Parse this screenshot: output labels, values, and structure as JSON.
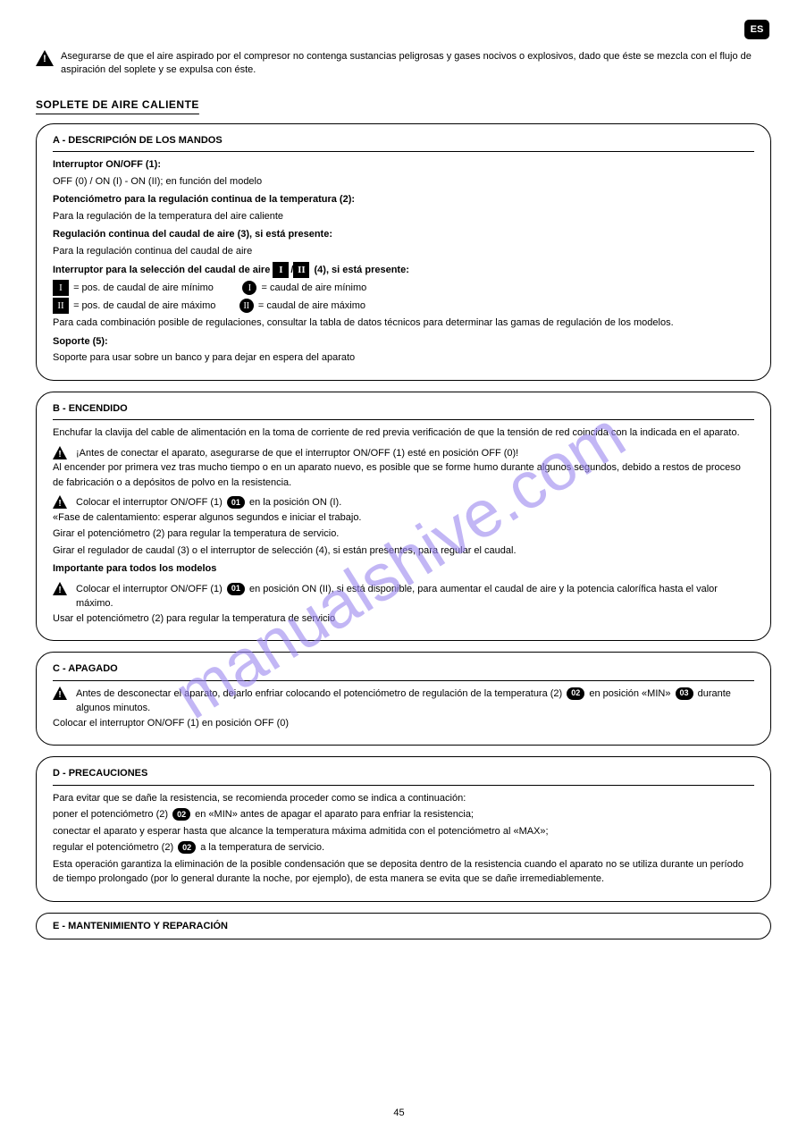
{
  "lang_badge": "ES",
  "top_warning": "Asegurarse de que el aire aspirado por el compresor no contenga sustancias peligrosas y gases nocivos o explosivos, dado que éste se mezcla con el flujo de aspiración del soplete y se expulsa con éste.",
  "section_heading": "SOPLETE DE AIRE CALIENTE",
  "box1": {
    "title": "A -  DESCRIPCIÓN DE LOS MANDOS",
    "l1": "Interruptor ON/OFF (1):",
    "l2": "OFF (0) / ON (I) - ON (II); en función del modelo",
    "l3": "Potenciómetro para la regulación continua de la temperatura (2):",
    "l4": "Para la regulación de la temperatura del aire caliente",
    "l5": "Regulación continua del caudal de aire (3), si está presente:",
    "l6": "Para la regulación continua del caudal de aire",
    "l7_pre": "Interruptor para la selección del caudal de aire",
    "l7_icon1": "I",
    "l7_sep": "/",
    "l7_icon2": "II",
    "l7_post": "(4), si está presente:",
    "l8_sq1": "I",
    "l8_t1": "= pos. de caudal de aire mínimo",
    "l8_c1": "I",
    "l8_t2": "= caudal de aire mínimo",
    "l9_sq1": "II",
    "l9_t1": "= pos. de caudal de aire máximo",
    "l9_c1": "II",
    "l9_t2": "= caudal de aire máximo",
    "l10": "Para cada combinación posible de regulaciones, consultar la tabla de datos técnicos para determinar las gamas de regulación de los modelos.",
    "l11": "Soporte (5):",
    "l12": "Soporte para usar sobre un banco y para dejar en espera del aparato"
  },
  "box2": {
    "title": "B -  ENCENDIDO",
    "b1": "Enchufar la clavija del cable de alimentación en la toma de corriente de red previa verificación de que la tensión de red coincida con la indicada en el aparato.",
    "w1": "¡Antes de conectar el aparato, asegurarse de que el interruptor ON/OFF (1) esté en posición OFF (0)!",
    "b2": "Al encender por primera vez tras mucho tiempo o en un aparato nuevo, es posible que se forme humo durante algunos segundos, debido a restos de proceso de fabricación o a depósitos de polvo en la resistencia.",
    "w2_pre": "Colocar el interruptor ON/OFF (1)",
    "w2_o": "01",
    "w2_post": "en la posición ON (I).",
    "b3": "«Fase de calentamiento: esperar algunos segundos e iniciar el trabajo.",
    "b4": "Girar el potenciómetro (2) para regular la temperatura de servicio.",
    "b5": "Girar el regulador de caudal (3) o el interruptor de selección (4), si están presentes, para regular el caudal.",
    "b6": "Importante para todos los modelos",
    "w3_pre": "Colocar el interruptor ON/OFF (1)",
    "w3_o": "01",
    "w3_post": "en posición ON (II), si está disponible, para aumentar el caudal de aire y la potencia calorífica hasta el valor máximo.",
    "b7": "Usar el potenciómetro (2) para regular la temperatura de servicio"
  },
  "box3": {
    "title": "C -  APAGADO",
    "w_pre": "Antes de desconectar el aparato, dejarlo enfriar colocando el potenciómetro de regulación de la temperatura (2)",
    "w_o1": "02",
    "w_mid": "en posición «MIN»",
    "w_o2": "03",
    "w_post": "durante algunos minutos.",
    "l2": "Colocar el interruptor ON/OFF (1) en posición OFF (0)"
  },
  "box4": {
    "title": "D -  PRECAUCIONES",
    "l1": "Para evitar que se dañe la resistencia, se recomienda proceder como se indica a continuación:",
    "l2_pre": "poner el potenciómetro (2)",
    "l2_o": "02",
    "l2_post": "en «MIN» antes de apagar el aparato para enfriar la resistencia;",
    "l3": "conectar el aparato y esperar hasta que alcance la temperatura máxima admitida con el potenciómetro al «MAX»;",
    "l4_pre": "regular el potenciómetro (2)",
    "l4_o": "02",
    "l4_post": "a la temperatura de servicio.",
    "l5": "Esta operación garantiza la eliminación de la posible condensación que se deposita dentro de la resistencia cuando el aparato no se utiliza durante un período de tiempo prolongado (por lo general durante la noche, por ejemplo), de esta manera se evita que se dañe irremediablemente."
  },
  "box5_title": "E -  MANTENIMIENTO Y REPARACIÓN",
  "watermark": "manualshive.com",
  "pagenum": "45"
}
